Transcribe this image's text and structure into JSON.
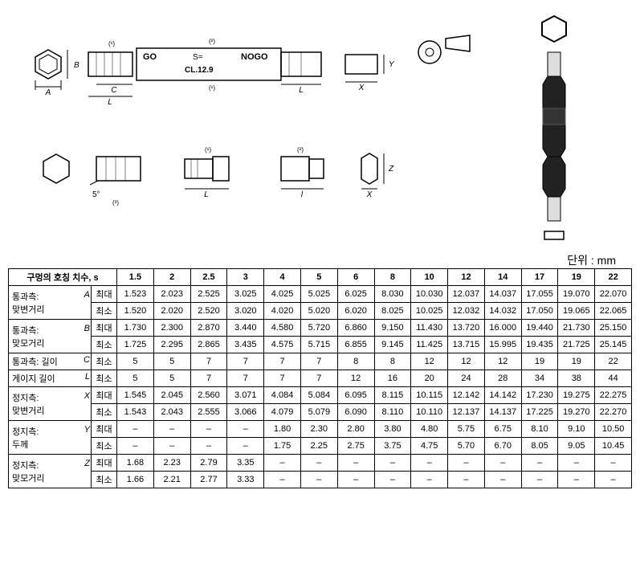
{
  "diagram": {
    "go_label": "GO",
    "s_label": "S=",
    "nogo_label": "NOGO",
    "class_label": "CL.12.9",
    "angle_label": "5°",
    "dim_labels": {
      "A": "A",
      "B": "B",
      "C": "C",
      "L": "L",
      "l": "l",
      "X": "X",
      "Y": "Y",
      "Z": "Z"
    },
    "footnotes": [
      "(¹)",
      "(²)",
      "(³)"
    ]
  },
  "unit": "단위 : mm",
  "table": {
    "header_title": "구멍의 호칭 치수, s",
    "sizes": [
      "1.5",
      "2",
      "2.5",
      "3",
      "4",
      "5",
      "6",
      "8",
      "10",
      "12",
      "14",
      "17",
      "19",
      "22"
    ],
    "rows": [
      {
        "label": "통과측:",
        "sym": "A",
        "sublabel": "맞변거리",
        "max": "최대",
        "min": "최소",
        "max_vals": [
          "1.523",
          "2.023",
          "2.525",
          "3.025",
          "4.025",
          "5.025",
          "6.025",
          "8.030",
          "10.030",
          "12.037",
          "14.037",
          "17.055",
          "19.070",
          "22.070"
        ],
        "min_vals": [
          "1.520",
          "2.020",
          "2.520",
          "3.020",
          "4.020",
          "5.020",
          "6.020",
          "8.025",
          "10.025",
          "12.032",
          "14.032",
          "17.050",
          "19.065",
          "22.065"
        ]
      },
      {
        "label": "통과측:",
        "sym": "B",
        "sublabel": "맞모거리",
        "max": "최대",
        "min": "최소",
        "max_vals": [
          "1.730",
          "2.300",
          "2.870",
          "3.440",
          "4.580",
          "5.720",
          "6.860",
          "9.150",
          "11.430",
          "13.720",
          "16.000",
          "19.440",
          "21.730",
          "25.150"
        ],
        "min_vals": [
          "1.725",
          "2.295",
          "2.865",
          "3.435",
          "4.575",
          "5.715",
          "6.855",
          "9.145",
          "11.425",
          "13.715",
          "15.995",
          "19.435",
          "21.725",
          "25.145"
        ]
      },
      {
        "label": "통과측: 길이",
        "sym": "C",
        "sublabel": "",
        "single": "최소",
        "vals": [
          "5",
          "5",
          "7",
          "7",
          "7",
          "7",
          "8",
          "8",
          "12",
          "12",
          "12",
          "19",
          "19",
          "22"
        ]
      },
      {
        "label": "게이지 길이",
        "sym": "L",
        "sublabel": "",
        "single": "최소",
        "vals": [
          "5",
          "5",
          "7",
          "7",
          "7",
          "7",
          "12",
          "16",
          "20",
          "24",
          "28",
          "34",
          "38",
          "44"
        ]
      },
      {
        "label": "정지측:",
        "sym": "X",
        "sublabel": "맞변거리",
        "max": "최대",
        "min": "최소",
        "max_vals": [
          "1.545",
          "2.045",
          "2.560",
          "3.071",
          "4.084",
          "5.084",
          "6.095",
          "8.115",
          "10.115",
          "12.142",
          "14.142",
          "17.230",
          "19.275",
          "22.275"
        ],
        "min_vals": [
          "1.543",
          "2.043",
          "2.555",
          "3.066",
          "4.079",
          "5.079",
          "6.090",
          "8.110",
          "10.110",
          "12.137",
          "14.137",
          "17.225",
          "19.270",
          "22.270"
        ]
      },
      {
        "label": "정지측:",
        "sym": "Y",
        "sublabel": "두께",
        "max": "최대",
        "min": "최소",
        "max_vals": [
          "–",
          "–",
          "–",
          "–",
          "1.80",
          "2.30",
          "2.80",
          "3.80",
          "4.80",
          "5.75",
          "6.75",
          "8.10",
          "9.10",
          "10.50"
        ],
        "min_vals": [
          "–",
          "–",
          "–",
          "–",
          "1.75",
          "2.25",
          "2.75",
          "3.75",
          "4.75",
          "5.70",
          "6.70",
          "8.05",
          "9.05",
          "10.45"
        ]
      },
      {
        "label": "정지측:",
        "sym": "Z",
        "sublabel": "맞모거리",
        "max": "최대",
        "min": "최소",
        "max_vals": [
          "1.68",
          "2.23",
          "2.79",
          "3.35",
          "–",
          "–",
          "–",
          "–",
          "–",
          "–",
          "–",
          "–",
          "–",
          "–"
        ],
        "min_vals": [
          "1.66",
          "2.21",
          "2.77",
          "3.33",
          "–",
          "–",
          "–",
          "–",
          "–",
          "–",
          "–",
          "–",
          "–",
          "–"
        ]
      }
    ]
  },
  "colors": {
    "line": "#000000",
    "gauge_body": "#222222",
    "gauge_end": "#dddddd"
  }
}
